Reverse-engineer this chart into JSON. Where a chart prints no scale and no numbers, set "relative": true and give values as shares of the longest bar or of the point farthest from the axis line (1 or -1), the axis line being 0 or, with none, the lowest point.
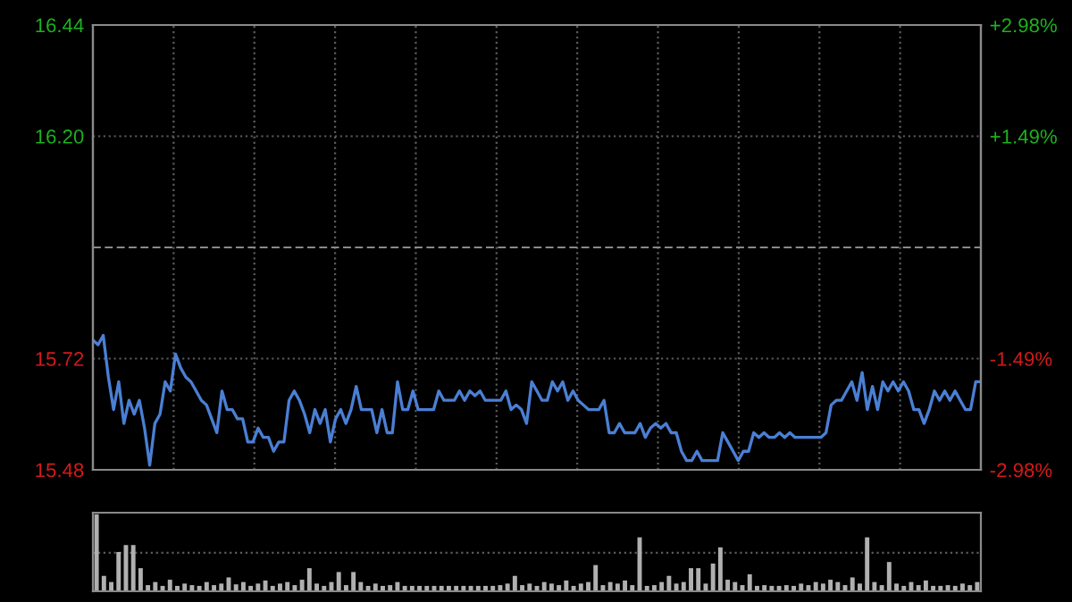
{
  "chart_data": [
    {
      "type": "line",
      "categories": [
        null,
        null,
        null,
        null,
        null,
        null,
        null,
        null,
        null,
        null,
        null,
        null,
        null,
        null,
        null,
        null,
        null,
        null,
        null,
        null,
        null,
        null,
        null,
        null,
        null,
        null,
        null,
        null,
        null,
        null,
        null,
        null,
        null,
        null,
        null,
        null,
        null,
        null,
        null,
        null,
        null,
        null,
        null,
        null,
        null,
        null,
        null,
        null,
        null,
        null,
        null,
        null,
        null,
        null,
        null,
        null,
        null,
        null,
        null,
        null,
        null,
        null,
        null,
        null,
        null,
        null,
        null,
        null,
        null,
        null,
        null,
        null,
        null,
        null,
        null,
        null,
        null,
        null,
        null,
        null,
        null,
        null,
        null,
        null,
        null,
        null,
        null,
        null,
        null,
        null,
        null,
        null,
        null,
        null,
        null,
        null,
        null,
        null,
        null,
        null,
        null,
        null,
        null,
        null,
        null,
        null,
        null,
        null,
        null,
        null,
        null,
        null,
        null,
        null,
        null,
        null,
        null,
        null,
        null,
        null,
        null,
        null,
        null,
        null,
        null,
        null,
        null,
        null,
        null,
        null,
        null,
        null,
        null,
        null,
        null,
        null,
        null,
        null,
        null,
        null,
        null,
        null,
        null,
        null,
        null,
        null,
        null,
        null,
        null,
        null,
        null,
        null,
        null,
        null,
        null,
        null,
        null,
        null,
        null,
        null,
        null,
        null,
        null,
        null,
        null,
        null,
        null,
        null,
        null,
        null,
        null,
        null,
        null
      ],
      "series": [
        {
          "color": "#4a7fd4",
          "values": [
            15.76,
            15.75,
            15.77,
            15.68,
            15.61,
            15.67,
            15.58,
            15.63,
            15.6,
            15.63,
            15.57,
            15.49,
            15.58,
            15.6,
            15.67,
            15.65,
            15.73,
            15.7,
            15.68,
            15.67,
            15.65,
            15.63,
            15.62,
            15.59,
            15.56,
            15.65,
            15.61,
            15.61,
            15.59,
            15.59,
            15.54,
            15.54,
            15.57,
            15.55,
            15.55,
            15.52,
            15.54,
            15.54,
            15.63,
            15.65,
            15.63,
            15.6,
            15.56,
            15.61,
            15.58,
            15.61,
            15.54,
            15.59,
            15.61,
            15.58,
            15.61,
            15.66,
            15.61,
            15.61,
            15.61,
            15.56,
            15.61,
            15.56,
            15.56,
            15.67,
            15.61,
            15.61,
            15.65,
            15.61,
            15.61,
            15.61,
            15.61,
            15.65,
            15.63,
            15.63,
            15.63,
            15.65,
            15.63,
            15.65,
            15.64,
            15.65,
            15.63,
            15.63,
            15.63,
            15.63,
            15.65,
            15.61,
            15.62,
            15.61,
            15.58,
            15.67,
            15.65,
            15.63,
            15.63,
            15.67,
            15.65,
            15.67,
            15.63,
            15.65,
            15.63,
            15.62,
            15.61,
            15.61,
            15.61,
            15.63,
            15.56,
            15.56,
            15.58,
            15.56,
            15.56,
            15.56,
            15.58,
            15.55,
            15.57,
            15.58,
            15.57,
            15.58,
            15.56,
            15.56,
            15.52,
            15.5,
            15.5,
            15.52,
            15.5,
            15.5,
            15.5,
            15.5,
            15.56,
            15.54,
            15.52,
            15.5,
            15.52,
            15.52,
            15.56,
            15.55,
            15.56,
            15.55,
            15.55,
            15.56,
            15.55,
            15.56,
            15.55,
            15.55,
            15.55,
            15.55,
            15.55,
            15.55,
            15.56,
            15.62,
            15.63,
            15.63,
            15.65,
            15.67,
            15.63,
            15.69,
            15.61,
            15.66,
            15.61,
            15.67,
            15.65,
            15.67,
            15.65,
            15.67,
            15.65,
            15.61,
            15.61,
            15.58,
            15.61,
            15.65,
            15.63,
            15.65,
            15.63,
            15.65,
            15.63,
            15.61,
            15.61,
            15.67,
            15.67
          ]
        }
      ],
      "ylim": [
        15.48,
        16.44
      ],
      "yticks": [
        {
          "value": 15.48,
          "label": "15.48"
        },
        {
          "value": 15.72,
          "label": "15.72"
        },
        {
          "value": 16.2,
          "label": "16.20"
        },
        {
          "value": 16.44,
          "label": "16.44"
        }
      ],
      "y2lim": [
        -2.98,
        2.98
      ],
      "y2ticks": [
        {
          "value": -2.98,
          "label": "-2.98%"
        },
        {
          "value": -1.49,
          "label": "-1.49%"
        },
        {
          "value": 1.49,
          "label": "+1.49%"
        },
        {
          "value": 2.98,
          "label": "+2.98%"
        }
      ],
      "ref_lines": [
        {
          "axis": "y",
          "value": 15.96,
          "color": "#8a8a8a",
          "line_style": "dashed"
        }
      ],
      "grid": true,
      "tick_labels": "y"
    },
    {
      "type": "bar",
      "relative": true,
      "tick_labels": false,
      "ref_lines": [
        {
          "axis": "y",
          "value": 0.5,
          "color": "#5a5a5a",
          "line_style": "dotted"
        }
      ],
      "categories": [
        null,
        null,
        null,
        null,
        null,
        null,
        null,
        null,
        null,
        null,
        null,
        null,
        null,
        null,
        null,
        null,
        null,
        null,
        null,
        null,
        null,
        null,
        null,
        null,
        null,
        null,
        null,
        null,
        null,
        null,
        null,
        null,
        null,
        null,
        null,
        null,
        null,
        null,
        null,
        null,
        null,
        null,
        null,
        null,
        null,
        null,
        null,
        null,
        null,
        null,
        null,
        null,
        null,
        null,
        null,
        null,
        null,
        null,
        null,
        null,
        null,
        null,
        null,
        null,
        null,
        null,
        null,
        null,
        null,
        null,
        null,
        null,
        null,
        null,
        null,
        null,
        null,
        null,
        null,
        null,
        null,
        null,
        null,
        null,
        null,
        null,
        null,
        null,
        null,
        null,
        null,
        null,
        null,
        null,
        null,
        null,
        null,
        null,
        null,
        null,
        null,
        null,
        null,
        null,
        null,
        null,
        null,
        null,
        null,
        null,
        null,
        null,
        null,
        null,
        null,
        null,
        null,
        null,
        null,
        null,
        null
      ],
      "series": [
        {
          "color": "#b0b0b0",
          "values": [
            1.0,
            0.2,
            0.12,
            0.51,
            0.6,
            0.6,
            0.3,
            0.08,
            0.12,
            0.07,
            0.15,
            0.07,
            0.1,
            0.08,
            0.07,
            0.12,
            0.08,
            0.1,
            0.18,
            0.09,
            0.12,
            0.07,
            0.1,
            0.14,
            0.07,
            0.1,
            0.12,
            0.08,
            0.15,
            0.3,
            0.1,
            0.07,
            0.12,
            0.25,
            0.08,
            0.25,
            0.12,
            0.07,
            0.1,
            0.07,
            0.08,
            0.12,
            0.07,
            0.07,
            0.07,
            0.07,
            0.07,
            0.07,
            0.07,
            0.07,
            0.07,
            0.07,
            0.07,
            0.07,
            0.07,
            0.08,
            0.1,
            0.2,
            0.08,
            0.1,
            0.07,
            0.12,
            0.1,
            0.08,
            0.14,
            0.07,
            0.1,
            0.12,
            0.34,
            0.08,
            0.12,
            0.1,
            0.14,
            0.08,
            0.7,
            0.07,
            0.08,
            0.12,
            0.2,
            0.1,
            0.12,
            0.3,
            0.3,
            0.1,
            0.36,
            0.57,
            0.15,
            0.12,
            0.08,
            0.22,
            0.07,
            0.08,
            0.07,
            0.07,
            0.08,
            0.07,
            0.1,
            0.08,
            0.12,
            0.1,
            0.15,
            0.12,
            0.08,
            0.18,
            0.1,
            0.7,
            0.12,
            0.08,
            0.38,
            0.1,
            0.07,
            0.12,
            0.08,
            0.14,
            0.07,
            0.07,
            0.08,
            0.07,
            0.1,
            0.08,
            0.12
          ]
        }
      ]
    }
  ]
}
